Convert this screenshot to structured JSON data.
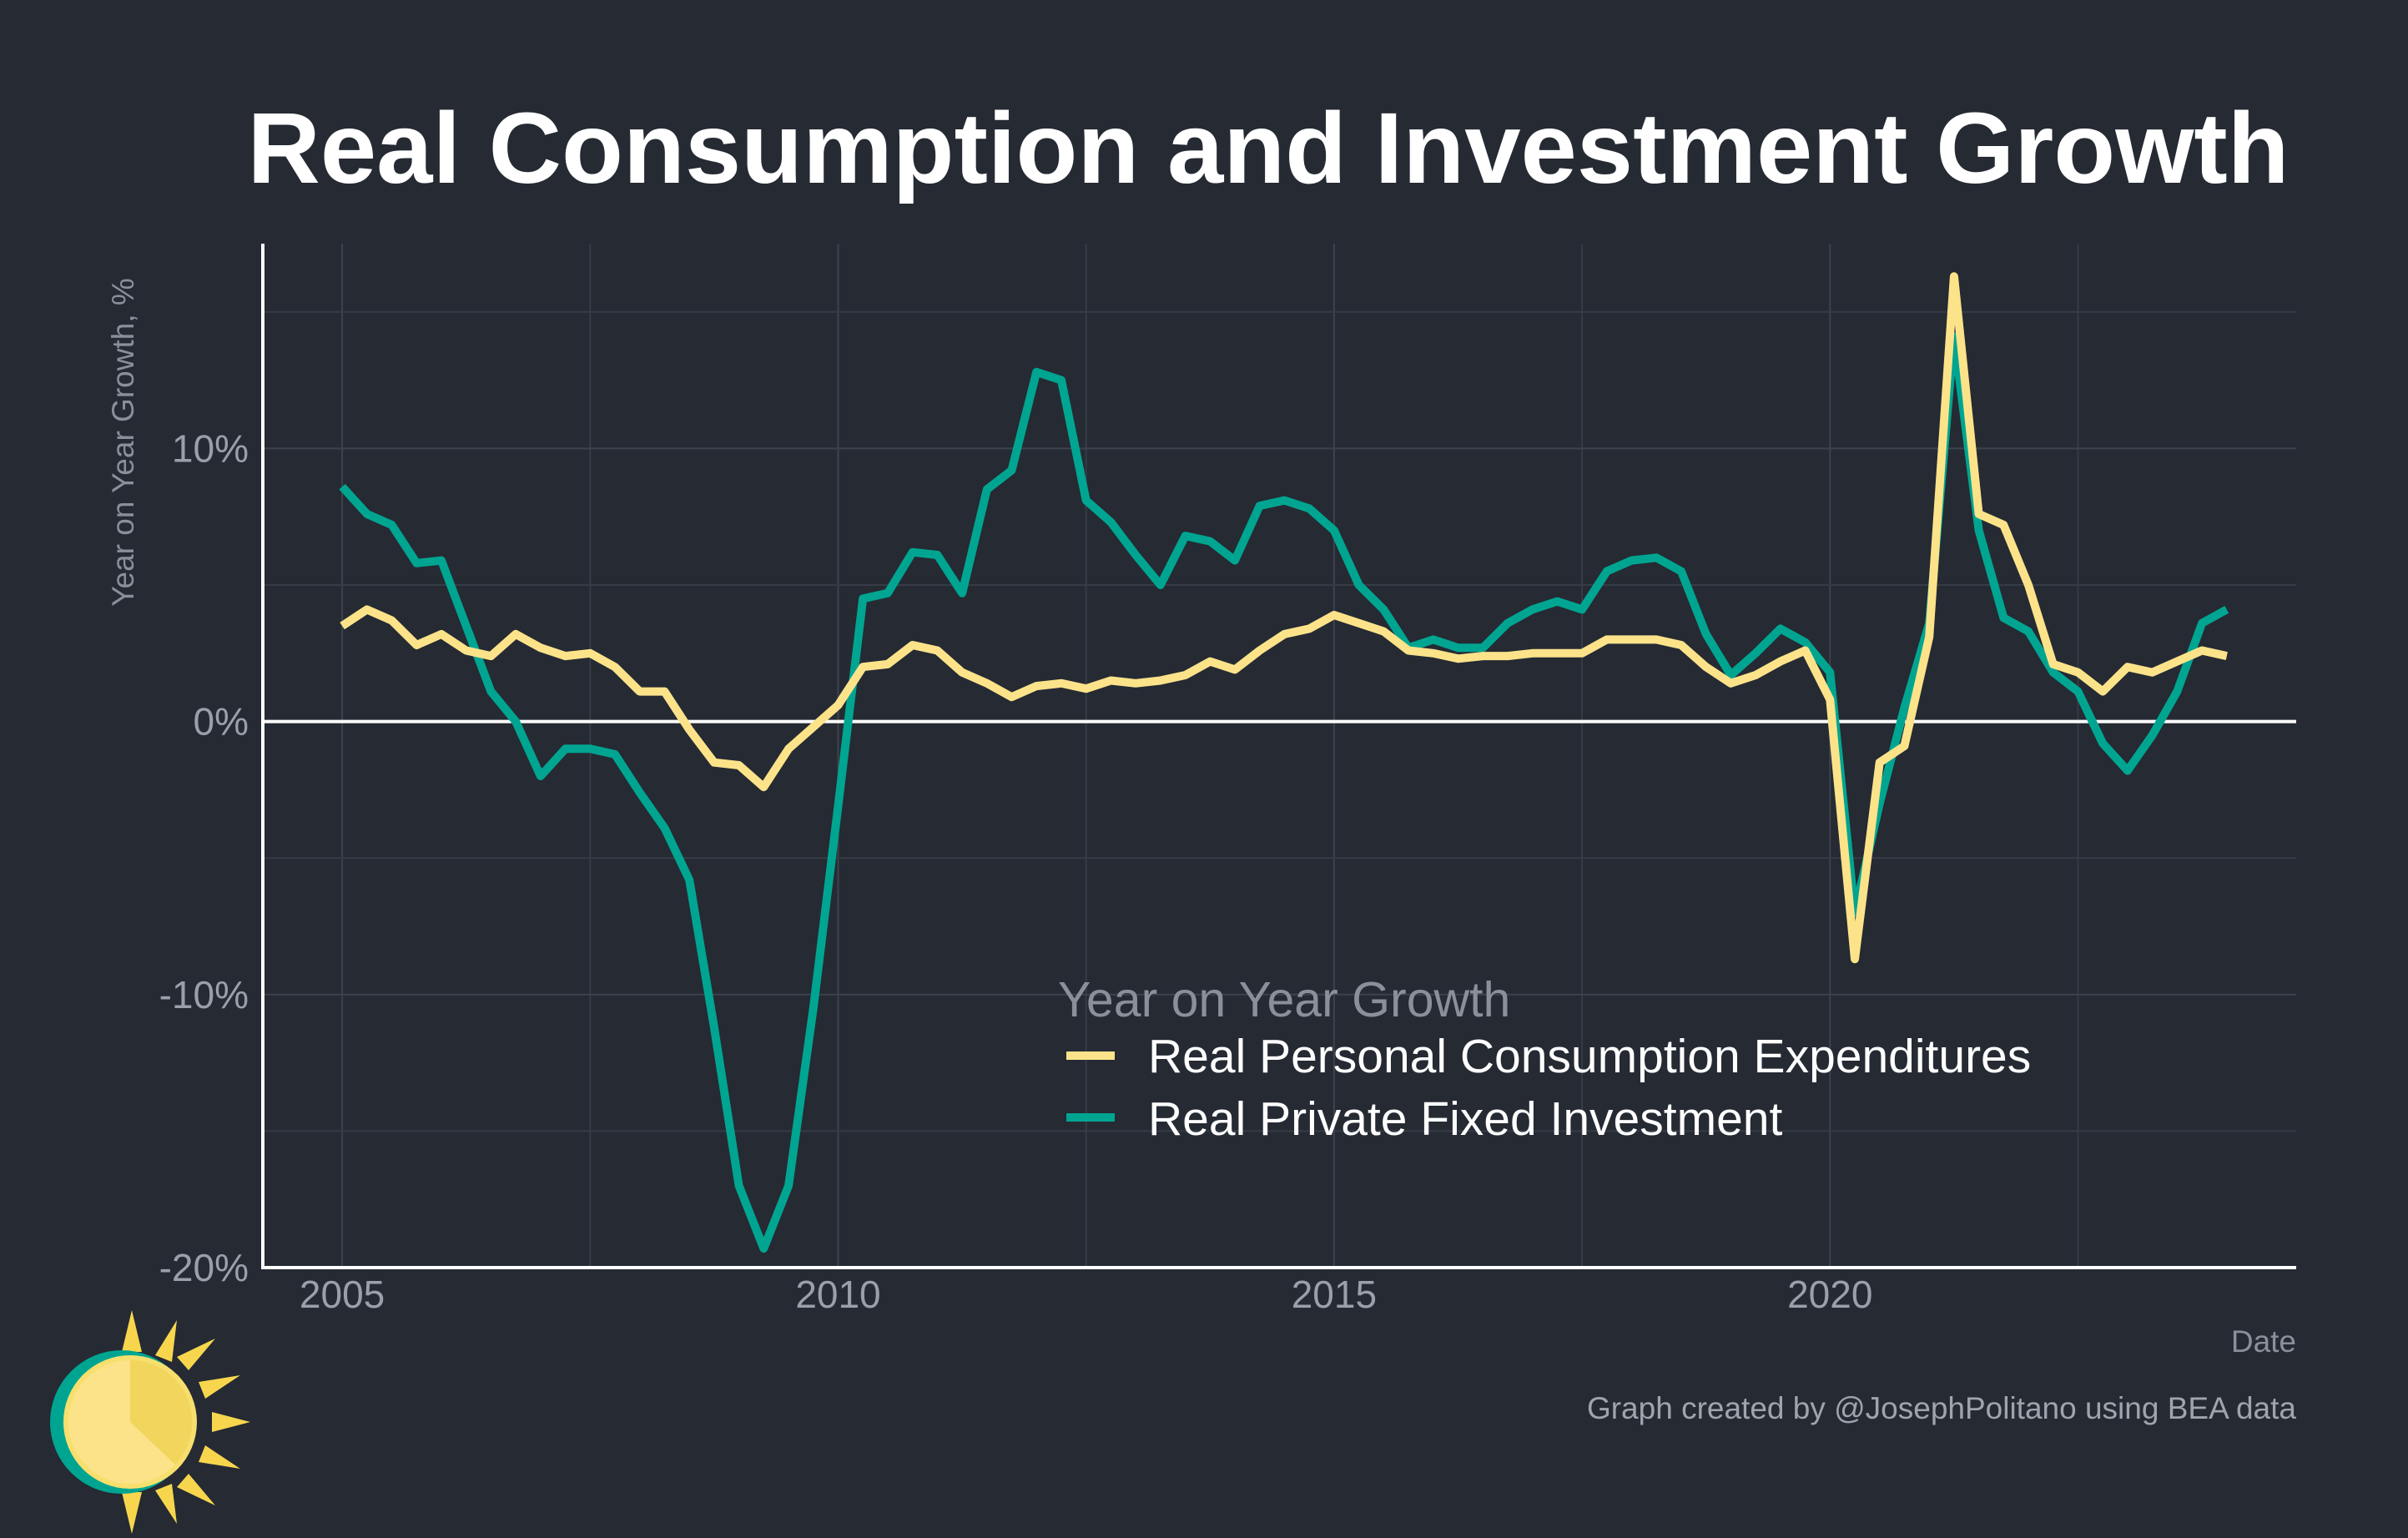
{
  "chart_data": {
    "type": "line",
    "title": "Real Consumption and Investment Growth",
    "xlabel": "Date",
    "ylabel": "Year on Year Growth, %",
    "caption": "Graph created by @JosephPolitano using BEA data",
    "xlim": [
      2004.2,
      2024.7
    ],
    "ylim": [
      -20,
      17.5
    ],
    "x_ticks": [
      2005,
      2010,
      2015,
      2020
    ],
    "x_tick_labels": [
      "2005",
      "2010",
      "2015",
      "2020"
    ],
    "y_ticks": [
      10,
      0,
      -10,
      -20
    ],
    "y_tick_labels": [
      "10%",
      "0%",
      "-10%",
      "-20%"
    ],
    "grid": true,
    "zero_line": true,
    "legend": {
      "title": "Year on Year Growth",
      "position": "bottom-center inside plot"
    },
    "series": [
      {
        "name": "Real Personal Consumption Expenditures",
        "color": "#fce38a",
        "x": [
          2005.0,
          2005.25,
          2005.5,
          2005.75,
          2006.0,
          2006.25,
          2006.5,
          2006.75,
          2007.0,
          2007.25,
          2007.5,
          2007.75,
          2008.0,
          2008.25,
          2008.5,
          2008.75,
          2009.0,
          2009.25,
          2009.5,
          2009.75,
          2010.0,
          2010.25,
          2010.5,
          2010.75,
          2011.0,
          2011.25,
          2011.5,
          2011.75,
          2012.0,
          2012.25,
          2012.5,
          2012.75,
          2013.0,
          2013.25,
          2013.5,
          2013.75,
          2014.0,
          2014.25,
          2014.5,
          2014.75,
          2015.0,
          2015.25,
          2015.5,
          2015.75,
          2016.0,
          2016.25,
          2016.5,
          2016.75,
          2017.0,
          2017.25,
          2017.5,
          2017.75,
          2018.0,
          2018.25,
          2018.5,
          2018.75,
          2019.0,
          2019.25,
          2019.5,
          2019.75,
          2020.0,
          2020.25,
          2020.5,
          2020.75,
          2021.0,
          2021.25,
          2021.5,
          2021.75,
          2022.0,
          2022.25,
          2022.5,
          2022.75,
          2023.0,
          2023.25,
          2023.5,
          2023.75,
          2024.0
        ],
        "values": [
          3.5,
          4.1,
          3.7,
          2.8,
          3.2,
          2.6,
          2.4,
          3.2,
          2.7,
          2.4,
          2.5,
          2.0,
          1.1,
          1.1,
          -0.3,
          -1.5,
          -1.6,
          -2.4,
          -1.0,
          -0.2,
          0.6,
          2.0,
          2.1,
          2.8,
          2.6,
          1.8,
          1.4,
          0.9,
          1.3,
          1.4,
          1.2,
          1.5,
          1.4,
          1.5,
          1.7,
          2.2,
          1.9,
          2.6,
          3.2,
          3.4,
          3.9,
          3.6,
          3.3,
          2.6,
          2.5,
          2.3,
          2.4,
          2.4,
          2.5,
          2.5,
          2.5,
          3.0,
          3.0,
          3.0,
          2.8,
          2.0,
          1.4,
          1.7,
          2.2,
          2.6,
          0.8,
          -8.7,
          -1.5,
          -0.9,
          3.1,
          16.3,
          7.6,
          7.2,
          5.0,
          2.1,
          1.8,
          1.1,
          2.0,
          1.8,
          2.2,
          2.6,
          2.4
        ]
      },
      {
        "name": "Real Private Fixed Investment",
        "color": "#00a591",
        "x": [
          2005.0,
          2005.25,
          2005.5,
          2005.75,
          2006.0,
          2006.25,
          2006.5,
          2006.75,
          2007.0,
          2007.25,
          2007.5,
          2007.75,
          2008.0,
          2008.25,
          2008.5,
          2008.75,
          2009.0,
          2009.25,
          2009.5,
          2009.75,
          2010.0,
          2010.25,
          2010.5,
          2010.75,
          2011.0,
          2011.25,
          2011.5,
          2011.75,
          2012.0,
          2012.25,
          2012.5,
          2012.75,
          2013.0,
          2013.25,
          2013.5,
          2013.75,
          2014.0,
          2014.25,
          2014.5,
          2014.75,
          2015.0,
          2015.25,
          2015.5,
          2015.75,
          2016.0,
          2016.25,
          2016.5,
          2016.75,
          2017.0,
          2017.25,
          2017.5,
          2017.75,
          2018.0,
          2018.25,
          2018.5,
          2018.75,
          2019.0,
          2019.25,
          2019.5,
          2019.75,
          2020.0,
          2020.25,
          2020.5,
          2020.75,
          2021.0,
          2021.25,
          2021.5,
          2021.75,
          2022.0,
          2022.25,
          2022.5,
          2022.75,
          2023.0,
          2023.25,
          2023.5,
          2023.75,
          2024.0
        ],
        "values": [
          8.6,
          7.6,
          7.2,
          5.8,
          5.9,
          3.5,
          1.1,
          0,
          -2.0,
          -1.0,
          -1.0,
          -1.2,
          -2.6,
          -3.9,
          -5.8,
          -11.2,
          -17.0,
          -19.3,
          -17.0,
          -10.5,
          -3.1,
          4.5,
          4.7,
          6.2,
          6.1,
          4.7,
          8.5,
          9.2,
          12.8,
          12.5,
          8.1,
          7.3,
          6.1,
          5.0,
          6.8,
          6.6,
          5.9,
          7.9,
          8.1,
          7.8,
          7.0,
          5.0,
          4.1,
          2.7,
          3.0,
          2.7,
          2.7,
          3.6,
          4.1,
          4.4,
          4.1,
          5.5,
          5.9,
          6.0,
          5.5,
          3.2,
          1.7,
          2.5,
          3.4,
          2.9,
          1.8,
          -7.0,
          -3.0,
          0.5,
          3.6,
          14.1,
          7.0,
          3.8,
          3.3,
          1.8,
          1.1,
          -0.8,
          -1.8,
          -0.5,
          1.1,
          3.6,
          4.1
        ]
      }
    ]
  }
}
